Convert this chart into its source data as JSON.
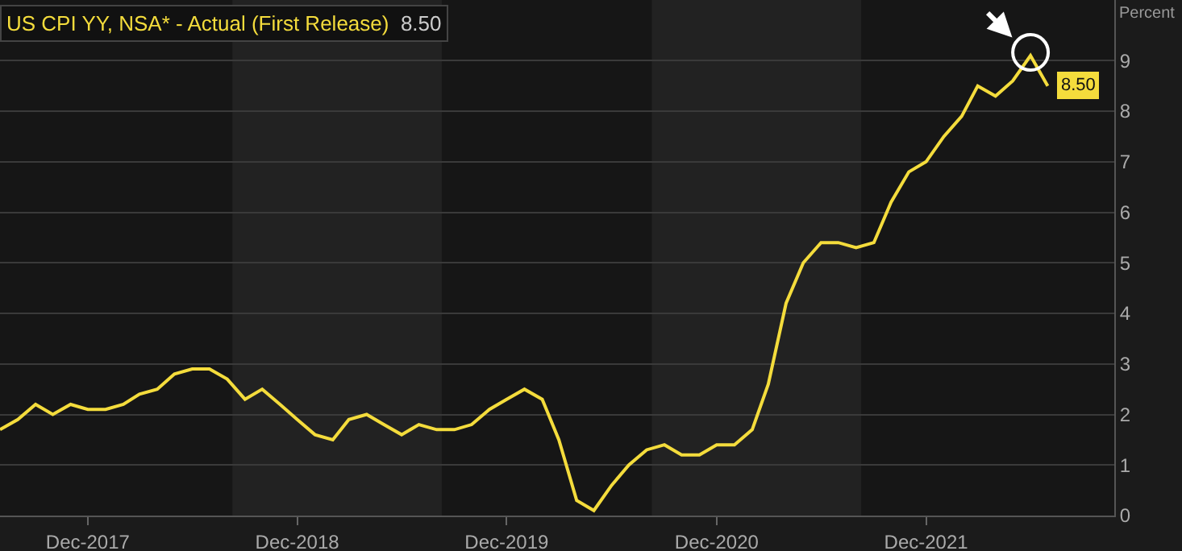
{
  "chart_data": {
    "type": "line",
    "ylabel": "Percent",
    "x": [
      "2017-07",
      "2017-08",
      "2017-09",
      "2017-10",
      "2017-11",
      "2017-12",
      "2018-01",
      "2018-02",
      "2018-03",
      "2018-04",
      "2018-05",
      "2018-06",
      "2018-07",
      "2018-08",
      "2018-09",
      "2018-10",
      "2018-11",
      "2018-12",
      "2019-01",
      "2019-02",
      "2019-03",
      "2019-04",
      "2019-05",
      "2019-06",
      "2019-07",
      "2019-08",
      "2019-09",
      "2019-10",
      "2019-11",
      "2019-12",
      "2020-01",
      "2020-02",
      "2020-03",
      "2020-04",
      "2020-05",
      "2020-06",
      "2020-07",
      "2020-08",
      "2020-09",
      "2020-10",
      "2020-11",
      "2020-12",
      "2021-01",
      "2021-02",
      "2021-03",
      "2021-04",
      "2021-05",
      "2021-06",
      "2021-07",
      "2021-08",
      "2021-09",
      "2021-10",
      "2021-11",
      "2021-12",
      "2022-01",
      "2022-02",
      "2022-03",
      "2022-04",
      "2022-05",
      "2022-06",
      "2022-07"
    ],
    "series": [
      {
        "name": "US CPI YY, NSA* - Actual (First Release)",
        "color": "#f4dc3c",
        "values": [
          1.7,
          1.9,
          2.2,
          2.0,
          2.2,
          2.1,
          2.1,
          2.2,
          2.4,
          2.5,
          2.8,
          2.9,
          2.9,
          2.7,
          2.3,
          2.5,
          2.2,
          1.9,
          1.6,
          1.5,
          1.9,
          2.0,
          1.8,
          1.6,
          1.8,
          1.7,
          1.7,
          1.8,
          2.1,
          2.3,
          2.5,
          2.3,
          1.5,
          0.3,
          0.1,
          0.6,
          1.0,
          1.3,
          1.4,
          1.2,
          1.2,
          1.4,
          1.4,
          1.7,
          2.6,
          4.2,
          5.0,
          5.4,
          5.4,
          5.3,
          5.4,
          6.2,
          6.8,
          7.0,
          7.5,
          7.9,
          8.5,
          8.3,
          8.6,
          9.1,
          8.5
        ],
        "value_labels": [
          null,
          null,
          null,
          null,
          null,
          null,
          null,
          null,
          null,
          null,
          null,
          null,
          null,
          null,
          null,
          null,
          null,
          null,
          null,
          null,
          null,
          null,
          null,
          null,
          null,
          null,
          null,
          null,
          null,
          null,
          null,
          null,
          null,
          null,
          null,
          null,
          null,
          null,
          null,
          null,
          null,
          null,
          null,
          null,
          null,
          null,
          null,
          null,
          null,
          null,
          null,
          null,
          null,
          null,
          null,
          null,
          null,
          null,
          null,
          null,
          "8.50"
        ]
      }
    ],
    "xlim": [
      "2017-07-01",
      "2022-10-25"
    ],
    "xticks": [
      {
        "value": "2017-12-01",
        "label": "Dec-2017"
      },
      {
        "value": "2018-12-01",
        "label": "Dec-2018"
      },
      {
        "value": "2019-12-01",
        "label": "Dec-2019"
      },
      {
        "value": "2020-12-01",
        "label": "Dec-2020"
      },
      {
        "value": "2021-12-01",
        "label": "Dec-2021"
      }
    ],
    "ylim": [
      0,
      10.2
    ],
    "yticks": [
      0,
      1,
      2,
      3,
      4,
      5,
      6,
      7,
      8,
      9
    ],
    "bands": [
      {
        "axis": "x",
        "from": "2018-08-10",
        "to": "2019-08-10",
        "color": "#222222"
      },
      {
        "axis": "x",
        "from": "2020-08-10",
        "to": "2021-08-10",
        "color": "#222222"
      }
    ],
    "grid": "y",
    "marker": "none",
    "line_style": "solid"
  }
}
